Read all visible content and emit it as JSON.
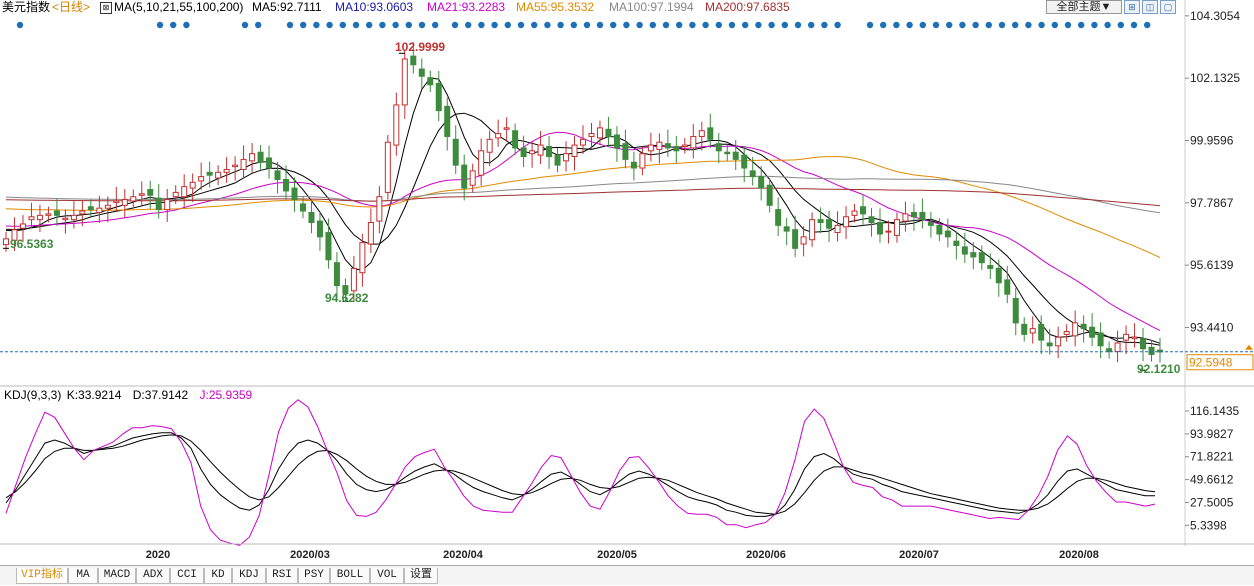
{
  "header": {
    "symbol": "美元指数",
    "period": "<日线>",
    "ma_params": "MA(5,10,21,55,100,200)",
    "ma5": "MA5:92.7111",
    "ma10": "MA10:93.0603",
    "ma21": "MA21:93.2283",
    "ma55": "MA55:95.3532",
    "ma100": "MA100:97.1994",
    "ma200": "MA200:97.6835",
    "theme_button": "全部主题▼"
  },
  "colors": {
    "ma5": "#000000",
    "ma10": "#000000",
    "ma21": "#cc00cc",
    "ma55": "#e08a00",
    "ma100": "#888888",
    "ma200": "#a03030",
    "up": "#c03030",
    "down": "#3d8b3d",
    "accent_blue": "#1e6fb5"
  },
  "kdj_header": {
    "title": "KDJ(9,3,3)",
    "k": "K:33.9214",
    "d": "D:37.9142",
    "j": "J:25.9359"
  },
  "tabs": [
    "VIP指标",
    "MA",
    "MACD",
    "ADX",
    "CCI",
    "KD",
    "KDJ",
    "RSI",
    "PSY",
    "BOLL",
    "VOL",
    "设置"
  ],
  "chart_data": [
    {
      "type": "candlestick",
      "title": "美元指数<日线>",
      "y_ticks": [
        "104.3054",
        "102.1325",
        "99.9596",
        "97.7867",
        "95.6139",
        "93.4410"
      ],
      "ylim": [
        91.4,
        104.3
      ],
      "x_ticks": [
        "2020",
        "2020/03",
        "2020/04",
        "2020/05",
        "2020/06",
        "2020/07",
        "2020/08"
      ],
      "current_price": "92.5948",
      "annotations": {
        "high": "102.9999",
        "low": "94.6282",
        "start": "96.5363",
        "recent_low": "92.1210"
      },
      "closes": [
        96.53,
        96.85,
        97.05,
        97.3,
        97.35,
        97.4,
        97.35,
        97.25,
        97.35,
        97.5,
        97.55,
        97.6,
        97.7,
        97.85,
        97.9,
        98.0,
        98.1,
        98.05,
        97.55,
        97.9,
        98.15,
        98.35,
        98.5,
        98.7,
        98.75,
        98.85,
        98.95,
        99.1,
        99.3,
        99.5,
        99.2,
        99.0,
        98.6,
        98.2,
        97.9,
        97.5,
        97.1,
        96.6,
        95.8,
        94.9,
        94.62,
        95.5,
        96.4,
        97.1,
        98.0,
        99.9,
        101.2,
        102.8,
        102.6,
        102.2,
        101.9,
        101.0,
        100.1,
        99.1,
        98.3,
        98.9,
        99.6,
        100.0,
        100.2,
        100.4,
        99.7,
        99.4,
        99.6,
        99.8,
        99.4,
        99.1,
        99.5,
        99.8,
        100.0,
        100.2,
        100.4,
        100.1,
        99.7,
        99.3,
        99.0,
        99.5,
        99.8,
        99.9,
        99.7,
        99.6,
        99.8,
        100.1,
        100.3,
        100.0,
        99.6,
        99.5,
        99.3,
        99.0,
        98.7,
        98.3,
        97.7,
        97.0,
        96.8,
        96.2,
        96.6,
        97.2,
        97.1,
        96.9,
        97.0,
        97.3,
        97.5,
        97.4,
        97.1,
        96.7,
        96.8,
        97.2,
        97.4,
        97.3,
        97.2,
        97.0,
        96.7,
        96.6,
        96.3,
        96.0,
        95.9,
        95.7,
        95.5,
        95.0,
        94.6,
        93.6,
        93.2,
        93.4,
        93.0,
        92.8,
        93.1,
        93.3,
        93.6,
        93.4,
        93.1,
        92.8,
        92.6,
        92.9,
        93.2,
        93.1,
        92.7,
        92.5,
        92.59
      ],
      "series": [
        {
          "name": "MA5"
        },
        {
          "name": "MA10"
        },
        {
          "name": "MA21"
        },
        {
          "name": "MA55"
        },
        {
          "name": "MA100"
        },
        {
          "name": "MA200"
        }
      ]
    },
    {
      "type": "line",
      "title": "KDJ(9,3,3)",
      "y_ticks": [
        "116.1435",
        "93.9827",
        "71.8221",
        "49.6612",
        "27.5005",
        "5.3398"
      ],
      "ylim": [
        -5,
        121
      ],
      "series": [
        {
          "name": "K",
          "values": [
            27,
            40,
            55,
            70,
            85,
            88,
            85,
            80,
            75,
            78,
            80,
            82,
            86,
            90,
            92,
            94,
            95,
            95,
            90,
            80,
            60,
            45,
            35,
            28,
            22,
            20,
            25,
            40,
            60,
            75,
            85,
            88,
            85,
            78,
            68,
            55,
            45,
            40,
            38,
            40,
            45,
            52,
            58,
            62,
            65,
            60,
            55,
            48,
            42,
            38,
            35,
            32,
            30,
            34,
            40,
            48,
            55,
            57,
            52,
            45,
            38,
            35,
            40,
            48,
            55,
            58,
            55,
            50,
            44,
            38,
            33,
            30,
            28,
            25,
            20,
            18,
            15,
            14,
            14,
            16,
            25,
            40,
            60,
            72,
            75,
            70,
            62,
            55,
            52,
            50,
            45,
            42,
            38,
            36,
            34,
            32,
            30,
            28,
            26,
            24,
            22,
            20,
            19,
            18,
            17,
            20,
            26,
            35,
            48,
            58,
            60,
            55,
            50,
            45,
            40,
            38,
            36,
            34,
            33.9214
          ]
        },
        {
          "name": "D",
          "values": [
            32,
            38,
            47,
            58,
            70,
            77,
            80,
            80,
            78,
            78,
            79,
            80,
            82,
            85,
            88,
            90,
            92,
            93,
            92,
            87,
            78,
            67,
            57,
            48,
            40,
            33,
            30,
            33,
            42,
            53,
            64,
            72,
            77,
            78,
            74,
            68,
            60,
            53,
            48,
            45,
            45,
            47,
            51,
            55,
            58,
            59,
            58,
            55,
            51,
            47,
            43,
            39,
            36,
            35,
            37,
            41,
            46,
            50,
            51,
            49,
            45,
            42,
            41,
            43,
            47,
            51,
            52,
            51,
            49,
            45,
            41,
            37,
            34,
            31,
            27,
            24,
            21,
            18,
            17,
            16,
            19,
            26,
            37,
            49,
            58,
            62,
            62,
            59,
            56,
            54,
            51,
            48,
            45,
            42,
            39,
            36,
            34,
            32,
            30,
            28,
            26,
            24,
            22,
            21,
            20,
            20,
            22,
            26,
            33,
            41,
            48,
            51,
            51,
            49,
            46,
            43,
            41,
            39,
            37.9142
          ]
        },
        {
          "name": "J",
          "values": [
            17,
            44,
            71,
            94,
            115,
            110,
            95,
            80,
            69,
            78,
            82,
            86,
            94,
            100,
            100,
            102,
            101,
            99,
            86,
            66,
            24,
            1,
            -9,
            -12,
            -14,
            -6,
            15,
            54,
            96,
            119,
            127,
            120,
            101,
            78,
            56,
            29,
            15,
            14,
            18,
            30,
            45,
            62,
            72,
            76,
            79,
            62,
            49,
            34,
            24,
            20,
            19,
            18,
            18,
            32,
            46,
            62,
            73,
            71,
            54,
            37,
            24,
            21,
            38,
            58,
            71,
            72,
            61,
            48,
            34,
            24,
            17,
            16,
            16,
            13,
            6,
            6,
            3,
            6,
            8,
            16,
            37,
            68,
            106,
            118,
            109,
            86,
            62,
            47,
            44,
            42,
            33,
            30,
            24,
            24,
            24,
            24,
            22,
            20,
            18,
            16,
            14,
            12,
            13,
            12,
            11,
            20,
            34,
            53,
            78,
            92,
            84,
            63,
            48,
            37,
            28,
            28,
            26,
            24,
            25.9359
          ]
        }
      ]
    }
  ]
}
